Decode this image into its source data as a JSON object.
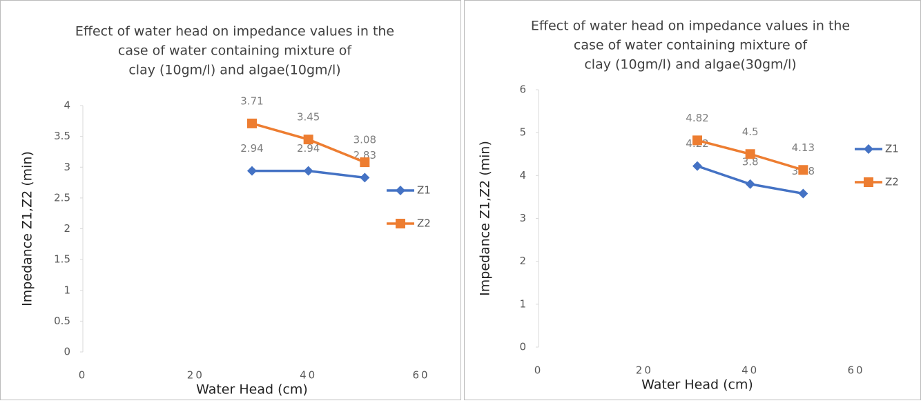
{
  "chart_data": [
    {
      "type": "line",
      "title": [
        "Effect of water head on impedance values in the",
        "case of  water containing mixture of",
        "clay (10gm/l) and algae(10gm/l)"
      ],
      "x_label": "Water Head (cm)",
      "y_label": "Impedance Z1,Z2 (min)",
      "x": [
        30,
        40,
        50
      ],
      "series": [
        {
          "name": "Z1",
          "color": "#4472c4",
          "values": [
            2.94,
            2.94,
            2.83
          ]
        },
        {
          "name": "Z2",
          "color": "#ed7d31",
          "values": [
            3.71,
            3.45,
            3.08
          ]
        }
      ],
      "xlim": [
        0,
        60
      ],
      "xticks": [
        0,
        20,
        40,
        60
      ],
      "ylim": [
        0,
        4
      ],
      "yticks": [
        0,
        0.5,
        1,
        1.5,
        2,
        2.5,
        3,
        3.5,
        4
      ],
      "grid": false,
      "legend": "right"
    },
    {
      "type": "line",
      "title": [
        "Effect of water head on impedance values in the",
        "case of  water containing mixture of",
        "clay (10gm/l) and algae(30gm/l)"
      ],
      "x_label": "Water Head (cm)",
      "y_label": "Impedance Z1,Z2 (min)",
      "x": [
        30,
        40,
        50
      ],
      "series": [
        {
          "name": "Z1",
          "color": "#4472c4",
          "values": [
            4.22,
            3.8,
            3.58
          ]
        },
        {
          "name": "Z2",
          "color": "#ed7d31",
          "values": [
            4.82,
            4.5,
            4.13
          ]
        }
      ],
      "xlim": [
        0,
        60
      ],
      "xticks": [
        0,
        20,
        40,
        60
      ],
      "ylim": [
        0,
        6
      ],
      "yticks": [
        0,
        1,
        2,
        3,
        4,
        5,
        6
      ],
      "grid": false,
      "legend": "right"
    }
  ]
}
